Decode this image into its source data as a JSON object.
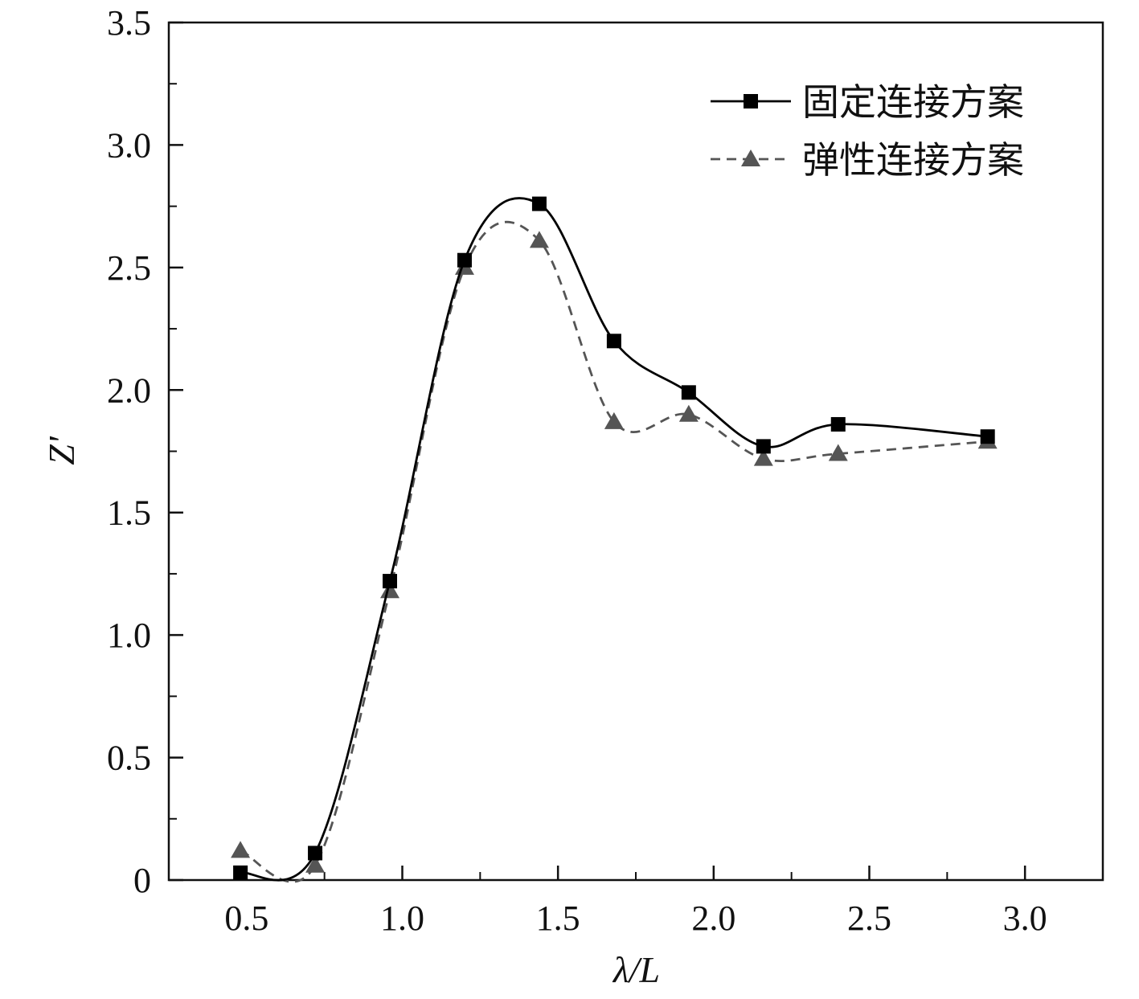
{
  "chart_data": {
    "type": "line",
    "xlabel": "λ/L",
    "ylabel": "Z'",
    "xlim": [
      0.25,
      3.25
    ],
    "ylim": [
      0,
      3.5
    ],
    "xticks": [
      "0.5",
      "1.0",
      "1.5",
      "2.0",
      "2.5",
      "3.0"
    ],
    "yticks": [
      "0",
      "0.5",
      "1.0",
      "1.5",
      "2.0",
      "2.5",
      "3.0",
      "3.5"
    ],
    "grid": false,
    "legend_position": "top-right",
    "series": [
      {
        "name": "固定连接方案",
        "color": "#000000",
        "marker": "square",
        "line": "solid",
        "x": [
          0.48,
          0.72,
          0.96,
          1.2,
          1.44,
          1.68,
          1.92,
          2.16,
          2.4,
          2.88
        ],
        "y": [
          0.03,
          0.11,
          1.22,
          2.53,
          2.76,
          2.2,
          1.99,
          1.77,
          1.86,
          1.81
        ]
      },
      {
        "name": "弹性连接方案",
        "color": "#555555",
        "marker": "triangle",
        "line": "dashed",
        "x": [
          0.48,
          0.72,
          0.96,
          1.2,
          1.44,
          1.68,
          1.92,
          2.16,
          2.4,
          2.88
        ],
        "y": [
          0.12,
          0.06,
          1.18,
          2.5,
          2.61,
          1.87,
          1.9,
          1.72,
          1.74,
          1.79
        ]
      }
    ]
  }
}
